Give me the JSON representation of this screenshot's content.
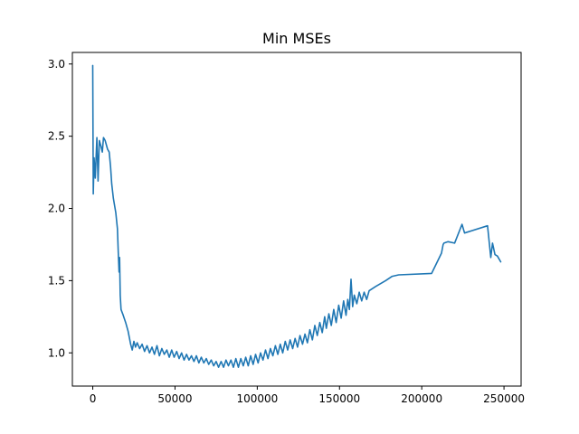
{
  "chart_data": {
    "type": "line",
    "title": "Min MSEs",
    "xlabel": "",
    "ylabel": "",
    "xlim": [
      -12400,
      260400
    ],
    "ylim": [
      0.77,
      3.08
    ],
    "grid": false,
    "legend": "none",
    "x_ticks": [
      0,
      50000,
      100000,
      150000,
      200000,
      250000
    ],
    "x_tick_labels": [
      "0",
      "50000",
      "100000",
      "150000",
      "200000",
      "250000"
    ],
    "y_ticks": [
      1.0,
      1.5,
      2.0,
      2.5,
      3.0
    ],
    "y_tick_labels": [
      "1.0",
      "1.5",
      "2.0",
      "2.5",
      "3.0"
    ],
    "series": [
      {
        "color": "#1f77b4",
        "points": [
          [
            0,
            2.99
          ],
          [
            300,
            2.1
          ],
          [
            800,
            2.35
          ],
          [
            1500,
            2.21
          ],
          [
            2500,
            2.49
          ],
          [
            3200,
            2.19
          ],
          [
            4000,
            2.47
          ],
          [
            5000,
            2.43
          ],
          [
            5800,
            2.39
          ],
          [
            6500,
            2.49
          ],
          [
            7500,
            2.47
          ],
          [
            9000,
            2.41
          ],
          [
            10000,
            2.39
          ],
          [
            10800,
            2.29
          ],
          [
            11500,
            2.17
          ],
          [
            12500,
            2.07
          ],
          [
            14000,
            1.97
          ],
          [
            15000,
            1.86
          ],
          [
            15500,
            1.7
          ],
          [
            16000,
            1.56
          ],
          [
            16300,
            1.66
          ],
          [
            16700,
            1.4
          ],
          [
            17200,
            1.3
          ],
          [
            18500,
            1.26
          ],
          [
            20000,
            1.21
          ],
          [
            21500,
            1.15
          ],
          [
            23000,
            1.06
          ],
          [
            24000,
            1.02
          ],
          [
            25000,
            1.08
          ],
          [
            26000,
            1.04
          ],
          [
            27000,
            1.07
          ],
          [
            28500,
            1.03
          ],
          [
            30000,
            1.06
          ],
          [
            31500,
            1.01
          ],
          [
            33000,
            1.05
          ],
          [
            34500,
            1.0
          ],
          [
            36000,
            1.04
          ],
          [
            37500,
            0.99
          ],
          [
            39000,
            1.05
          ],
          [
            40500,
            0.98
          ],
          [
            42000,
            1.03
          ],
          [
            43500,
            0.99
          ],
          [
            45000,
            1.02
          ],
          [
            46500,
            0.97
          ],
          [
            48000,
            1.02
          ],
          [
            49500,
            0.97
          ],
          [
            51000,
            1.01
          ],
          [
            52500,
            0.96
          ],
          [
            54000,
            1.0
          ],
          [
            55500,
            0.95
          ],
          [
            57000,
            0.99
          ],
          [
            58500,
            0.95
          ],
          [
            60000,
            0.98
          ],
          [
            61500,
            0.94
          ],
          [
            63000,
            0.98
          ],
          [
            64500,
            0.93
          ],
          [
            66000,
            0.97
          ],
          [
            67500,
            0.93
          ],
          [
            69000,
            0.96
          ],
          [
            70500,
            0.92
          ],
          [
            72000,
            0.95
          ],
          [
            73500,
            0.91
          ],
          [
            75000,
            0.94
          ],
          [
            76500,
            0.9
          ],
          [
            78000,
            0.94
          ],
          [
            79500,
            0.9
          ],
          [
            81000,
            0.95
          ],
          [
            82500,
            0.91
          ],
          [
            84000,
            0.95
          ],
          [
            85500,
            0.9
          ],
          [
            87000,
            0.96
          ],
          [
            88500,
            0.9
          ],
          [
            90000,
            0.96
          ],
          [
            91500,
            0.91
          ],
          [
            93000,
            0.97
          ],
          [
            94500,
            0.91
          ],
          [
            96000,
            0.98
          ],
          [
            97500,
            0.92
          ],
          [
            99000,
            0.99
          ],
          [
            100500,
            0.93
          ],
          [
            102000,
            1.0
          ],
          [
            103500,
            0.95
          ],
          [
            105000,
            1.02
          ],
          [
            106500,
            0.96
          ],
          [
            108000,
            1.03
          ],
          [
            109500,
            0.98
          ],
          [
            111000,
            1.05
          ],
          [
            112500,
            0.99
          ],
          [
            114000,
            1.06
          ],
          [
            115500,
            1.0
          ],
          [
            117000,
            1.08
          ],
          [
            118500,
            1.02
          ],
          [
            120000,
            1.09
          ],
          [
            121500,
            1.03
          ],
          [
            123000,
            1.1
          ],
          [
            124500,
            1.04
          ],
          [
            126000,
            1.12
          ],
          [
            127500,
            1.06
          ],
          [
            129000,
            1.13
          ],
          [
            130500,
            1.07
          ],
          [
            132000,
            1.16
          ],
          [
            133500,
            1.09
          ],
          [
            135000,
            1.19
          ],
          [
            136500,
            1.12
          ],
          [
            138000,
            1.21
          ],
          [
            139500,
            1.14
          ],
          [
            141000,
            1.25
          ],
          [
            142000,
            1.17
          ],
          [
            143500,
            1.27
          ],
          [
            145000,
            1.19
          ],
          [
            146500,
            1.3
          ],
          [
            148000,
            1.21
          ],
          [
            149500,
            1.33
          ],
          [
            151000,
            1.24
          ],
          [
            152500,
            1.36
          ],
          [
            154000,
            1.26
          ],
          [
            155000,
            1.37
          ],
          [
            156000,
            1.3
          ],
          [
            157000,
            1.51
          ],
          [
            158000,
            1.32
          ],
          [
            159000,
            1.4
          ],
          [
            160500,
            1.34
          ],
          [
            162000,
            1.42
          ],
          [
            163500,
            1.36
          ],
          [
            165000,
            1.42
          ],
          [
            166500,
            1.37
          ],
          [
            168000,
            1.43
          ],
          [
            172000,
            1.46
          ],
          [
            178000,
            1.5
          ],
          [
            182000,
            1.53
          ],
          [
            186000,
            1.54
          ],
          [
            206000,
            1.55
          ],
          [
            212000,
            1.69
          ],
          [
            213000,
            1.75
          ],
          [
            213500,
            1.76
          ],
          [
            216000,
            1.77
          ],
          [
            220000,
            1.76
          ],
          [
            224500,
            1.89
          ],
          [
            226000,
            1.83
          ],
          [
            240000,
            1.88
          ],
          [
            242000,
            1.66
          ],
          [
            243000,
            1.76
          ],
          [
            244500,
            1.68
          ],
          [
            246000,
            1.67
          ],
          [
            248000,
            1.63
          ]
        ]
      }
    ]
  }
}
